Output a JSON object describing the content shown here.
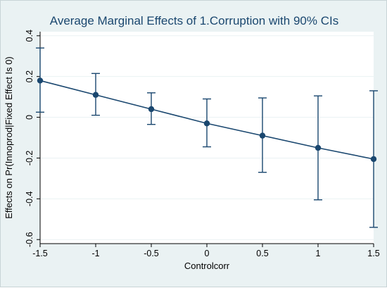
{
  "chart_data": {
    "type": "line",
    "title": "Average Marginal Effects of 1.Corruption with 90% CIs",
    "xlabel": "Controlcorr",
    "ylabel": "Effects on Pr(Innoprod|Fixed Effect Is 0)",
    "x": [
      -1.5,
      -1,
      -0.5,
      0,
      0.5,
      1,
      1.5
    ],
    "xticks": [
      -1.5,
      -1,
      -0.5,
      0,
      0.5,
      1,
      1.5
    ],
    "xtick_labels": [
      "-1.5",
      "-1",
      "-0.5",
      "0",
      "0.5",
      "1",
      "1.5"
    ],
    "yticks": [
      -0.6,
      -0.4,
      -0.2,
      0,
      0.2,
      0.4
    ],
    "ytick_labels": [
      "-0.6",
      "-0.4",
      "-0.2",
      "0",
      "0.2",
      "0.4"
    ],
    "xlim": [
      -1.5,
      1.5
    ],
    "ylim": [
      -0.62,
      0.42
    ],
    "grid": true,
    "series": [
      {
        "values": [
          0.18,
          0.11,
          0.04,
          -0.03,
          -0.09,
          -0.15,
          -0.205
        ],
        "ci_lower": [
          0.025,
          0.01,
          -0.035,
          -0.145,
          -0.27,
          -0.405,
          -0.54
        ],
        "ci_upper": [
          0.34,
          0.215,
          0.12,
          0.09,
          0.095,
          0.105,
          0.13
        ]
      }
    ],
    "colors": {
      "series": "#1a476f",
      "plot_bg": "#ffffff",
      "outer_bg": "#eaf2f3",
      "grid": "#eaf2f3"
    }
  }
}
